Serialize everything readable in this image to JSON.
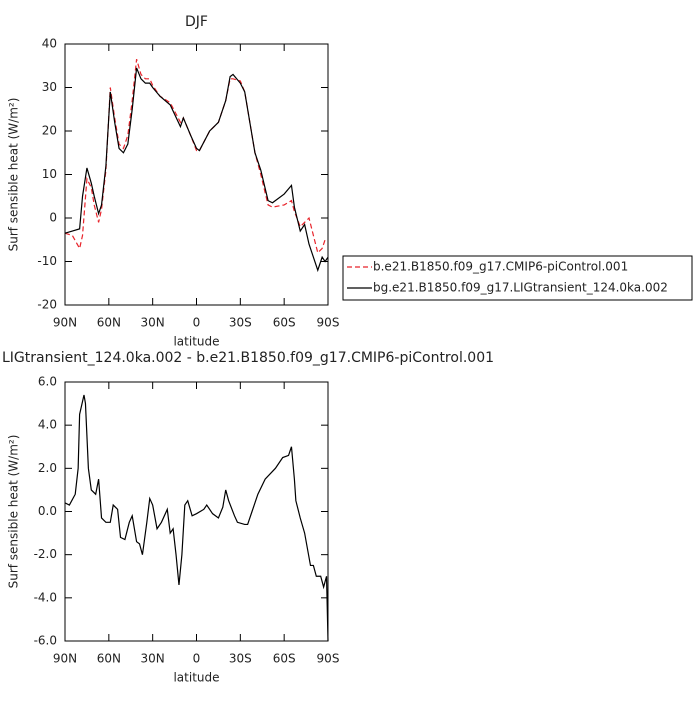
{
  "chart_data": [
    {
      "type": "line",
      "title": "DJF",
      "xlabel": "latitude",
      "ylabel": "Surf sensible heat (W/m²)",
      "xlim": [
        90,
        -90
      ],
      "ylim": [
        -20,
        40
      ],
      "xticks": [
        {
          "value": 90,
          "label": "90N"
        },
        {
          "value": 60,
          "label": "60N"
        },
        {
          "value": 30,
          "label": "30N"
        },
        0,
        {
          "value": -30,
          "label": "30S"
        },
        {
          "value": -60,
          "label": "60S"
        },
        {
          "value": -90,
          "label": "90S"
        }
      ],
      "yticks": [
        -20,
        -10,
        0,
        10,
        20,
        30,
        40
      ],
      "x": [
        90,
        85,
        80,
        78,
        75,
        72,
        70,
        67,
        65,
        62,
        59,
        56,
        53,
        50,
        47,
        44,
        41,
        38,
        35,
        32,
        30,
        25,
        18,
        11,
        9,
        4,
        0,
        -2,
        -9,
        -15,
        -20,
        -23,
        -25,
        -30,
        -33,
        -40,
        -44,
        -49,
        -52,
        -60,
        -65,
        -67,
        -71,
        -74,
        -77,
        -83,
        -86,
        -88,
        -90
      ],
      "series": [
        {
          "name": "b.e21.B1850.f09_g17.CMIP6-piControl.001",
          "color": "#e8232a",
          "dash": true,
          "values": [
            -3.5,
            -4,
            -7,
            -4,
            9,
            7,
            3,
            -1,
            2,
            11,
            30,
            23,
            17,
            16,
            19,
            27,
            36.5,
            33,
            32,
            32,
            30.5,
            28,
            26.5,
            22,
            23,
            19,
            15.5,
            15.5,
            20,
            22,
            27,
            32,
            32,
            31.5,
            29,
            15,
            10,
            3,
            2.5,
            3,
            4,
            1.5,
            -2,
            -1,
            0,
            -8,
            -7,
            -5,
            -5
          ]
        },
        {
          "name": "bg.e21.B1850.f09_g17.LIGtransient_124.0ka.002",
          "color": "#000000",
          "dash": false,
          "values": [
            -3.5,
            -3,
            -2.5,
            5,
            11.5,
            8,
            5,
            1,
            3,
            12,
            29,
            22,
            16,
            15,
            17,
            25,
            34.5,
            32,
            31,
            31,
            30,
            28,
            26,
            21,
            23,
            19,
            16,
            15.5,
            20,
            22,
            27,
            32.5,
            33,
            31,
            29,
            15,
            11,
            4,
            3.5,
            5.5,
            7.5,
            2.5,
            -3,
            -1.5,
            -6,
            -12,
            -9,
            -10,
            -9
          ]
        }
      ]
    },
    {
      "type": "line",
      "title": "LIGtransient_124.0ka.002 - b.e21.B1850.f09_g17.CMIP6-piControl.001",
      "xlabel": "latitude",
      "ylabel": "Surf sensible heat (W/m²)",
      "xlim": [
        90,
        -90
      ],
      "ylim": [
        -6,
        6
      ],
      "xticks": [
        {
          "value": 90,
          "label": "90N"
        },
        {
          "value": 60,
          "label": "60N"
        },
        {
          "value": 30,
          "label": "30N"
        },
        0,
        {
          "value": -30,
          "label": "30S"
        },
        {
          "value": -60,
          "label": "60S"
        },
        {
          "value": -90,
          "label": "90S"
        }
      ],
      "yticks": [
        {
          "value": -6,
          "label": "-6.0"
        },
        {
          "value": -4,
          "label": "-4.0"
        },
        {
          "value": -2,
          "label": "-2.0"
        },
        {
          "value": 0,
          "label": "0.0"
        },
        {
          "value": 2,
          "label": "2.0"
        },
        {
          "value": 4,
          "label": "4.0"
        },
        {
          "value": 6,
          "label": "6.0"
        }
      ],
      "x": [
        90,
        87,
        83,
        81,
        80,
        77,
        76,
        74,
        72,
        69,
        67,
        65,
        62,
        59,
        57,
        54,
        52,
        49,
        46,
        44,
        41,
        39,
        37,
        34,
        32,
        30,
        27,
        24,
        20,
        18,
        16,
        14,
        12,
        10,
        8,
        6,
        3,
        0,
        -5,
        -7,
        -11,
        -15,
        -18,
        -20,
        -22,
        -26,
        -28,
        -33,
        -35,
        -38,
        -42,
        -47,
        -54,
        -59,
        -63,
        -65,
        -67,
        -68,
        -71,
        -74,
        -78,
        -80,
        -82,
        -85,
        -87,
        -89,
        -90
      ],
      "series": [
        {
          "color": "#000000",
          "dash": false,
          "values": [
            0.4,
            0.3,
            0.8,
            2.0,
            4.5,
            5.4,
            5.0,
            2.0,
            1.0,
            0.8,
            1.5,
            -0.3,
            -0.5,
            -0.5,
            0.3,
            0.1,
            -1.2,
            -1.3,
            -0.5,
            -0.2,
            -1.4,
            -1.5,
            -2.0,
            -0.5,
            0.6,
            0.3,
            -0.8,
            -0.5,
            0.1,
            -1.0,
            -0.8,
            -2.0,
            -3.4,
            -2.0,
            0.3,
            0.5,
            -0.2,
            -0.1,
            0.1,
            0.3,
            -0.1,
            -0.3,
            0.2,
            1.0,
            0.5,
            -0.2,
            -0.5,
            -0.6,
            -0.6,
            0,
            0.8,
            1.5,
            2.0,
            2.5,
            2.6,
            3.0,
            1.5,
            0.5,
            -0.3,
            -1.0,
            -2.5,
            -2.5,
            -3.0,
            -3.0,
            -3.5,
            -3.0,
            -6.0
          ]
        }
      ]
    }
  ]
}
